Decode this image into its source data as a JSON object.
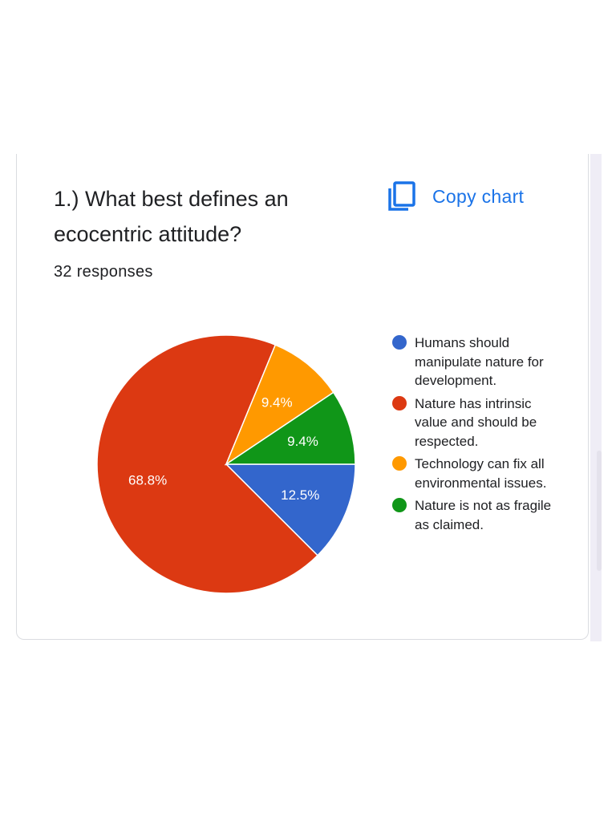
{
  "card": {
    "title": "1.) What best defines an ecocentric attitude?",
    "responses": "32 responses",
    "copy_button_label": "Copy chart",
    "copy_icon": "copy-icon"
  },
  "colors": {
    "accent": "#1a73e8",
    "text": "#202124",
    "border": "#dadce0"
  },
  "chart_data": {
    "type": "pie",
    "total_responses": 32,
    "slices": [
      {
        "label": "Humans should manipulate nature for development.",
        "value": 12.5,
        "display": "12.5%",
        "color": "#3366cc"
      },
      {
        "label": "Nature has intrinsic value and should be respected.",
        "value": 68.8,
        "display": "68.8%",
        "color": "#dc3912"
      },
      {
        "label": "Technology can fix all environmental issues.",
        "value": 9.4,
        "display": "9.4%",
        "color": "#ff9900"
      },
      {
        "label": "Nature is not as fragile as claimed.",
        "value": 9.4,
        "display": "9.4%",
        "color": "#109618"
      }
    ],
    "legend_position": "right"
  }
}
